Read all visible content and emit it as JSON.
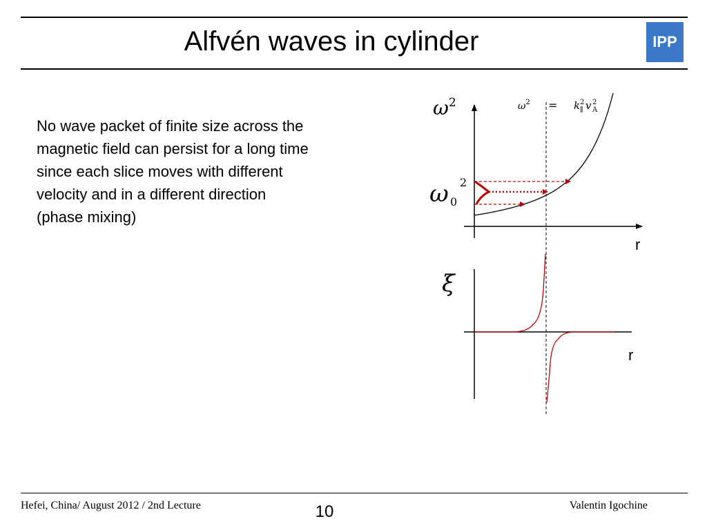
{
  "title": "Alfvén waves in cylinder",
  "logo": {
    "text": "IPP",
    "color": "#3c78c8"
  },
  "body_lines": [
    "No wave packet of finite size across the",
    "magnetic field can persist for a long time",
    "since each slice moves with different",
    "velocity and in a different direction",
    "(phase mixing)"
  ],
  "diagram": {
    "top_y_label": "ω",
    "top_y_sup": "2",
    "eq_lhs": "ω",
    "eq_lhs_sup": "2",
    "eq_sign": "=",
    "eq_k": "k",
    "eq_k_sup": "2",
    "eq_k_sub": "∥",
    "eq_v": "v",
    "eq_v_sup": "2",
    "eq_v_sub": "A",
    "omega0_main": "ω",
    "omega0_sub": "0",
    "omega0_sup": "2",
    "top_x_label": "r",
    "bottom_y_label": "ξ",
    "bottom_x_label": "r",
    "accent_color": "#c00000"
  },
  "footer": {
    "left": "Hefei, China/ August 2012 / 2nd Lecture",
    "page_number": "10",
    "right": "Valentin Igochine"
  }
}
